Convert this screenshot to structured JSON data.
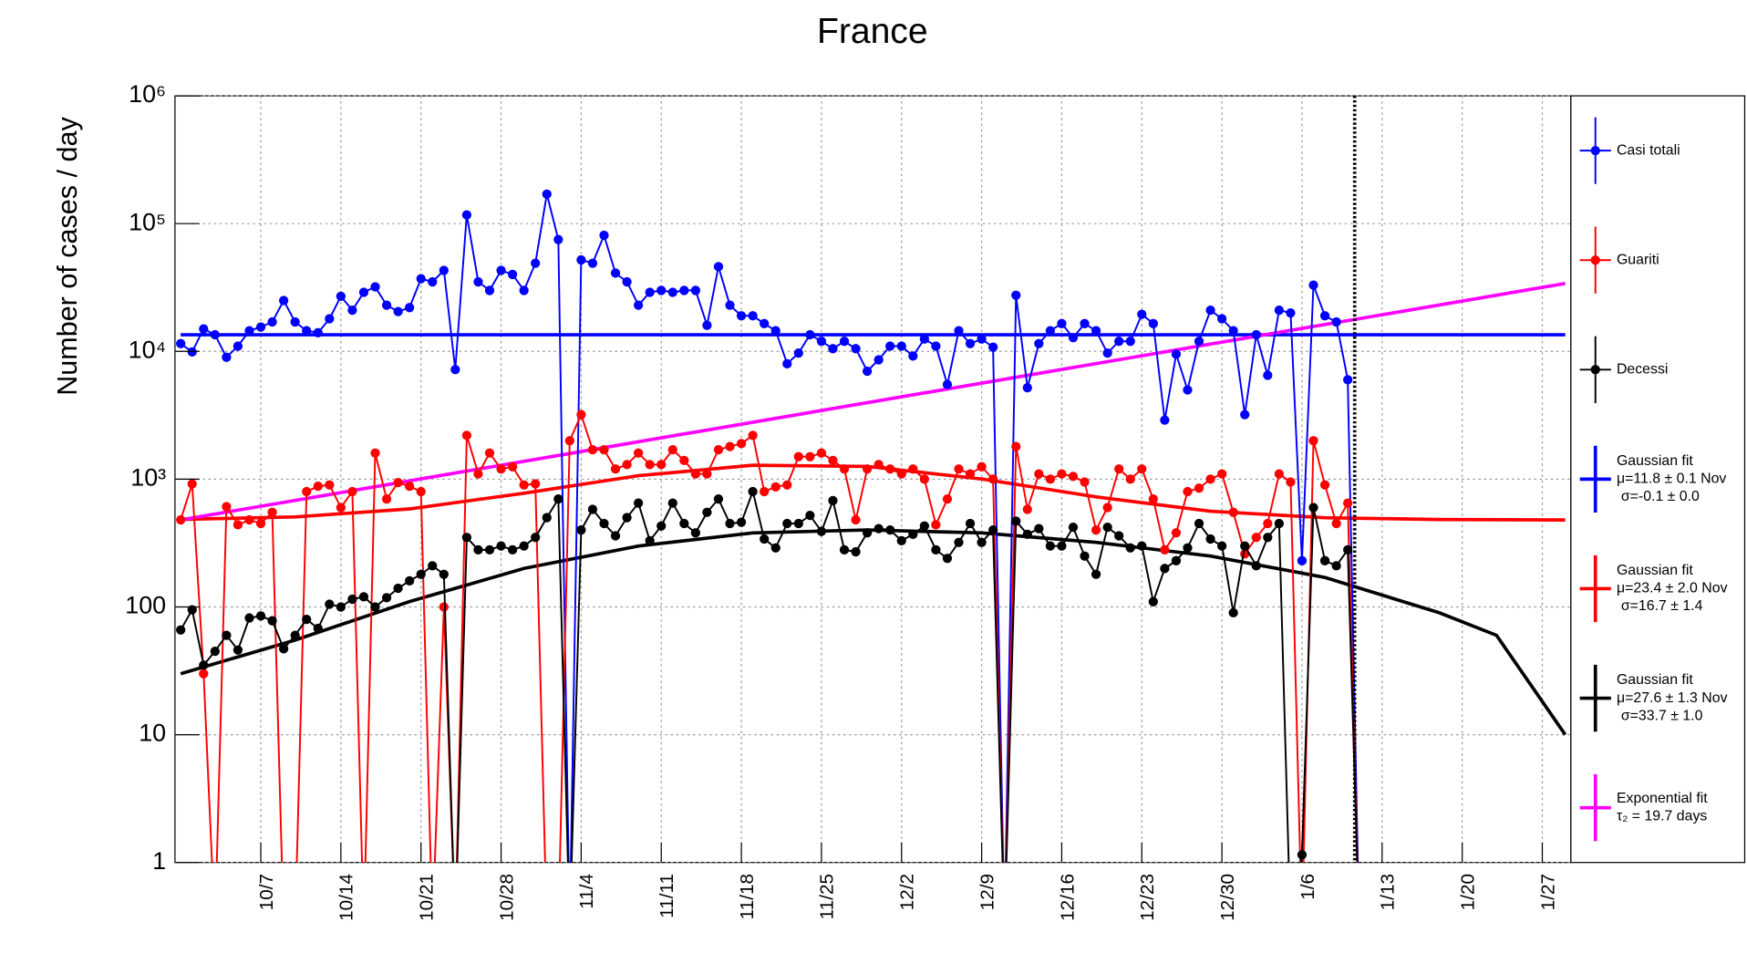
{
  "chart_data": {
    "type": "line",
    "title": "France",
    "y_label": "Number of cases / day",
    "log_y": true,
    "grid": true,
    "legend": "right",
    "xlim": [
      -0.5,
      121.5
    ],
    "ylim": [
      1,
      1000000
    ],
    "xticks": [
      {
        "value": 7,
        "label": "10/7"
      },
      {
        "value": 14,
        "label": "10/14"
      },
      {
        "value": 21,
        "label": "10/21"
      },
      {
        "value": 28,
        "label": "10/28"
      },
      {
        "value": 35,
        "label": "11/4"
      },
      {
        "value": 42,
        "label": "11/11"
      },
      {
        "value": 49,
        "label": "11/18"
      },
      {
        "value": 56,
        "label": "11/25"
      },
      {
        "value": 63,
        "label": "12/2"
      },
      {
        "value": 70,
        "label": "12/9"
      },
      {
        "value": 77,
        "label": "12/16"
      },
      {
        "value": 84,
        "label": "12/23"
      },
      {
        "value": 91,
        "label": "12/30"
      },
      {
        "value": 98,
        "label": "1/6"
      },
      {
        "value": 105,
        "label": "1/13"
      },
      {
        "value": 112,
        "label": "1/20"
      },
      {
        "value": 119,
        "label": "1/27"
      }
    ],
    "yticks": [
      1,
      10,
      100,
      {
        "value": 1000,
        "label": "10³"
      },
      {
        "value": 10000,
        "label": "10⁴"
      },
      {
        "value": 100000,
        "label": "10⁵"
      },
      {
        "value": 1000000,
        "label": "10⁶"
      }
    ],
    "reference_line": {
      "x": 102.6,
      "style": "dotted",
      "color": "#000000"
    },
    "x": [
      0,
      1,
      2,
      3,
      4,
      5,
      6,
      7,
      8,
      9,
      10,
      11,
      12,
      13,
      14,
      15,
      16,
      17,
      18,
      19,
      20,
      21,
      22,
      23,
      24,
      25,
      26,
      27,
      28,
      29,
      30,
      31,
      32,
      33,
      34,
      35,
      36,
      37,
      38,
      39,
      40,
      41,
      42,
      43,
      44,
      45,
      46,
      47,
      48,
      49,
      50,
      51,
      52,
      53,
      54,
      55,
      56,
      57,
      58,
      59,
      60,
      61,
      62,
      63,
      64,
      65,
      66,
      67,
      68,
      69,
      70,
      71,
      72,
      73,
      74,
      75,
      76,
      77,
      78,
      79,
      80,
      81,
      82,
      83,
      84,
      85,
      86,
      87,
      88,
      89,
      90,
      91,
      92,
      93,
      94,
      95,
      96,
      97,
      98,
      99,
      100,
      101,
      102,
      103
    ],
    "series": [
      {
        "name": "Casi totali",
        "color": "#0000ff",
        "values": [
          11500,
          9900,
          15000,
          13500,
          9000,
          11000,
          14500,
          15500,
          17000,
          25000,
          17000,
          14500,
          14000,
          18000,
          27000,
          21000,
          29000,
          32000,
          23000,
          20500,
          22000,
          37000,
          35000,
          43000,
          7200,
          117000,
          35000,
          30000,
          43000,
          40000,
          30000,
          49000,
          170000,
          75000,
          0,
          52000,
          49000,
          81000,
          41000,
          35000,
          23000,
          29000,
          30000,
          29000,
          30000,
          30000,
          16000,
          46000,
          23000,
          19000,
          19000,
          16500,
          14500,
          8000,
          9700,
          13500,
          12000,
          10500,
          12000,
          10500,
          7000,
          8600,
          11000,
          11000,
          9200,
          12500,
          11000,
          5500,
          14500,
          11500,
          12500,
          10800,
          0,
          27500,
          5200,
          11500,
          14500,
          16500,
          12800,
          16500,
          14500,
          9700,
          12000,
          12000,
          19500,
          16500,
          2900,
          9500,
          5000,
          12000,
          21000,
          18000,
          14500,
          3200,
          13500,
          6500,
          21000,
          20000,
          230,
          33000,
          19000,
          17000,
          6000,
          0
        ]
      },
      {
        "name": "Guariti",
        "color": "#ff0000",
        "values": [
          480,
          920,
          30,
          0,
          610,
          440,
          480,
          450,
          550,
          0,
          0,
          800,
          880,
          900,
          600,
          800,
          0,
          1600,
          700,
          940,
          880,
          800,
          0,
          100,
          0,
          2200,
          1100,
          1600,
          1200,
          1250,
          900,
          920,
          0,
          0,
          2000,
          3200,
          1700,
          1700,
          1200,
          1300,
          1600,
          1300,
          1300,
          1700,
          1400,
          1100,
          1100,
          1700,
          1800,
          1900,
          2200,
          800,
          870,
          900,
          1500,
          1500,
          1600,
          1400,
          1200,
          480,
          1200,
          1300,
          1200,
          1100,
          1200,
          1000,
          440,
          700,
          1200,
          1100,
          1250,
          1000,
          0,
          1800,
          580,
          1100,
          1000,
          1100,
          1050,
          950,
          400,
          600,
          1200,
          1000,
          1200,
          700,
          280,
          380,
          800,
          850,
          1000,
          1100,
          550,
          260,
          350,
          450,
          1100,
          950,
          0,
          2000,
          900,
          450,
          650,
          0
        ]
      },
      {
        "name": "Decessi",
        "color": "#000000",
        "values": [
          66,
          95,
          35,
          45,
          60,
          46,
          82,
          85,
          78,
          47,
          60,
          80,
          68,
          105,
          100,
          115,
          120,
          100,
          118,
          140,
          160,
          180,
          210,
          180,
          0,
          350,
          280,
          280,
          300,
          280,
          300,
          350,
          500,
          700,
          0,
          400,
          580,
          450,
          360,
          500,
          650,
          330,
          430,
          650,
          450,
          380,
          550,
          700,
          450,
          460,
          800,
          340,
          290,
          450,
          450,
          520,
          390,
          680,
          280,
          270,
          380,
          410,
          400,
          330,
          370,
          430,
          280,
          240,
          320,
          450,
          320,
          400,
          0,
          470,
          370,
          410,
          300,
          300,
          420,
          250,
          180,
          420,
          360,
          290,
          300,
          110,
          200,
          230,
          290,
          450,
          340,
          300,
          90,
          300,
          210,
          350,
          450,
          0,
          1.15,
          600,
          230,
          210,
          280,
          0
        ]
      }
    ],
    "fits": [
      {
        "name": "Gaussian fit",
        "lines": [
          "μ=11.8 ± 0.1 Nov",
          "σ=-0.1 ± 0.0"
        ],
        "color": "#0000ff",
        "x": [
          0,
          121
        ],
        "values": [
          13500,
          13500
        ]
      },
      {
        "name": "Gaussian fit",
        "lines": [
          "μ=23.4 ± 2.0 Nov",
          "σ=16.7 ± 1.4"
        ],
        "color": "#ff0000",
        "x": [
          0,
          10,
          20,
          30,
          40,
          50,
          60,
          70,
          80,
          90,
          100,
          110,
          121
        ],
        "values": [
          484,
          506,
          585,
          776,
          1064,
          1286,
          1258,
          1004,
          727,
          561,
          499,
          483,
          480
        ]
      },
      {
        "name": "Gaussian fit",
        "lines": [
          "μ=27.6 ± 1.3 Nov",
          "σ=33.7 ± 1.0"
        ],
        "color": "#000000",
        "x": [
          0,
          10,
          20,
          30,
          40,
          50,
          60,
          70,
          80,
          90,
          100,
          110,
          115,
          121
        ],
        "values": [
          30,
          55,
          110,
          200,
          300,
          380,
          400,
          380,
          320,
          250,
          170,
          90,
          60,
          10
        ]
      },
      {
        "name": "Exponential fit",
        "lines": [
          "τ₂ = 19.7 days"
        ],
        "color": "#ff00ff",
        "x": [
          0,
          121
        ],
        "values": [
          480,
          34000
        ]
      }
    ]
  }
}
